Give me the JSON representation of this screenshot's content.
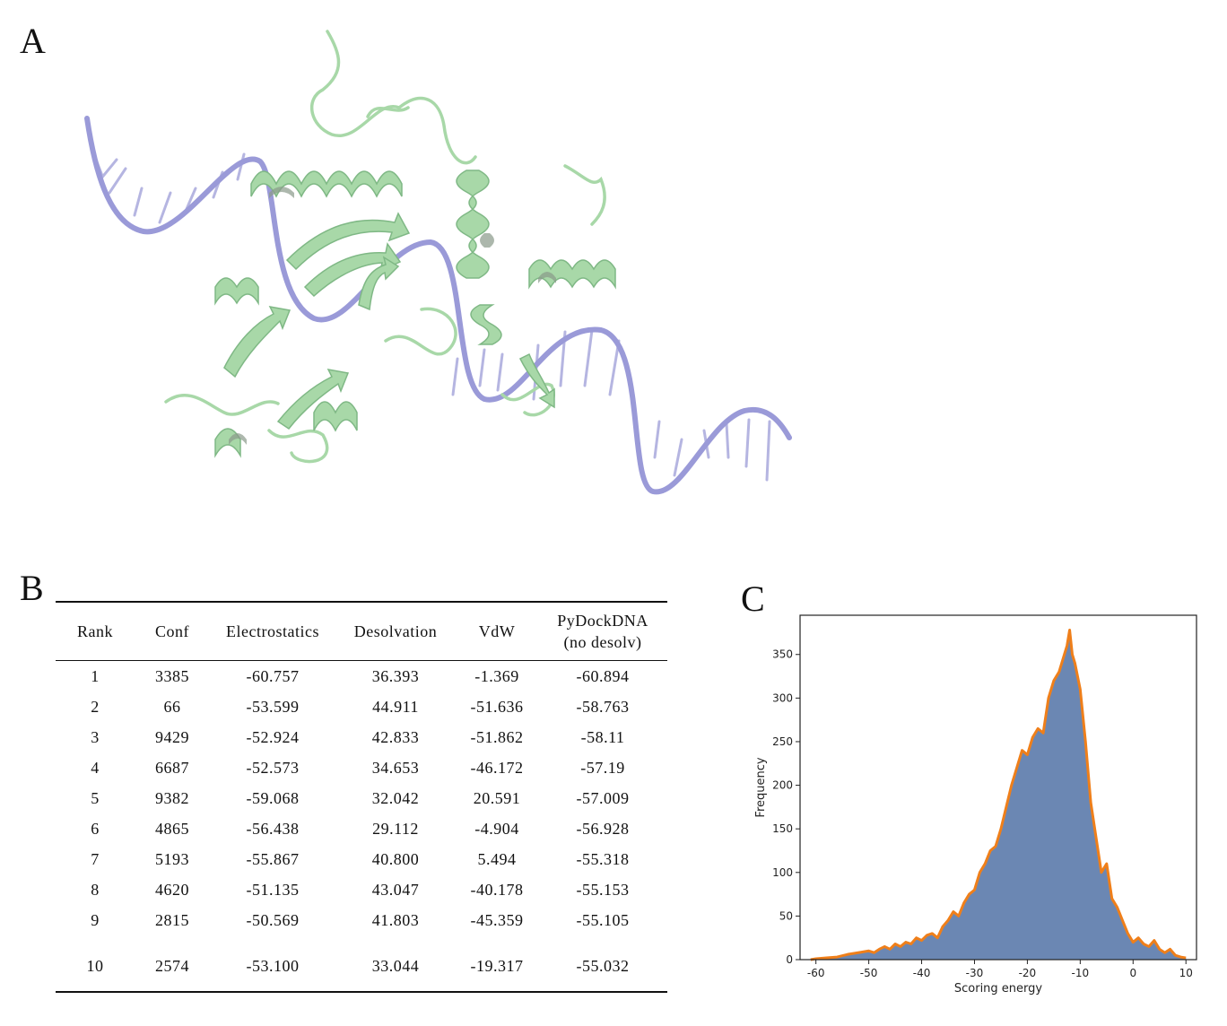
{
  "panels": {
    "a": "A",
    "b": "B",
    "c": "C"
  },
  "colors": {
    "protein": "#a8d8a8",
    "protein_dark": "#7fb885",
    "dna": "#9a9ad8",
    "hist_fill": "#6b87b3",
    "hist_line": "#ef7f1a"
  },
  "table": {
    "headers": [
      "Rank",
      "Conf",
      "Electrostatics",
      "Desolvation",
      "VdW",
      "PyDockDNA",
      "(no desolv)"
    ],
    "rows": [
      [
        "1",
        "3385",
        "-60.757",
        "36.393",
        "-1.369",
        "-60.894"
      ],
      [
        "2",
        "66",
        "-53.599",
        "44.911",
        "-51.636",
        "-58.763"
      ],
      [
        "3",
        "9429",
        "-52.924",
        "42.833",
        "-51.862",
        "-58.11"
      ],
      [
        "4",
        "6687",
        "-52.573",
        "34.653",
        "-46.172",
        "-57.19"
      ],
      [
        "5",
        "9382",
        "-59.068",
        "32.042",
        "20.591",
        "-57.009"
      ],
      [
        "6",
        "4865",
        "-56.438",
        "29.112",
        "-4.904",
        "-56.928"
      ],
      [
        "7",
        "5193",
        "-55.867",
        "40.800",
        "5.494",
        "-55.318"
      ],
      [
        "8",
        "4620",
        "-51.135",
        "43.047",
        "-40.178",
        "-55.153"
      ],
      [
        "9",
        "2815",
        "-50.569",
        "41.803",
        "-45.359",
        "-55.105"
      ],
      [
        "10",
        "2574",
        "-53.100",
        "33.044",
        "-19.317",
        "-55.032"
      ]
    ]
  },
  "chart_data": {
    "type": "area",
    "xlabel": "Scoring energy",
    "ylabel": "Frequency",
    "xlim": [
      -63,
      12
    ],
    "ylim": [
      0,
      395
    ],
    "xticks": [
      -60,
      -50,
      -40,
      -30,
      -20,
      -10,
      0,
      10
    ],
    "yticks": [
      0,
      50,
      100,
      150,
      200,
      250,
      300,
      350
    ],
    "series": [
      {
        "x": [
          -61,
          -60,
          -58,
          -56,
          -54,
          -52,
          -50,
          -49,
          -48,
          -47,
          -46,
          -45,
          -44,
          -43,
          -42,
          -41,
          -40,
          -39,
          -38,
          -37,
          -36,
          -35,
          -34,
          -33,
          -32,
          -31,
          -30,
          -29,
          -28,
          -27,
          -26,
          -25,
          -24,
          -23,
          -22,
          -21,
          -20,
          -19,
          -18,
          -17,
          -16,
          -15,
          -14,
          -13,
          -12.5,
          -12,
          -11.5,
          -11,
          -10,
          -9,
          -8,
          -7,
          -6,
          -5,
          -4,
          -3,
          -2,
          -1,
          0,
          1,
          2,
          3,
          4,
          5,
          6,
          7,
          8,
          9,
          10
        ],
        "y": [
          0,
          1,
          2,
          3,
          6,
          8,
          10,
          8,
          12,
          15,
          12,
          18,
          15,
          20,
          18,
          25,
          22,
          28,
          30,
          25,
          38,
          45,
          55,
          50,
          65,
          75,
          80,
          100,
          110,
          125,
          130,
          150,
          175,
          200,
          220,
          240,
          235,
          255,
          265,
          260,
          300,
          320,
          330,
          350,
          360,
          378,
          350,
          340,
          310,
          250,
          180,
          140,
          100,
          110,
          70,
          60,
          45,
          30,
          20,
          25,
          18,
          15,
          22,
          12,
          8,
          12,
          5,
          3,
          2
        ]
      }
    ]
  }
}
